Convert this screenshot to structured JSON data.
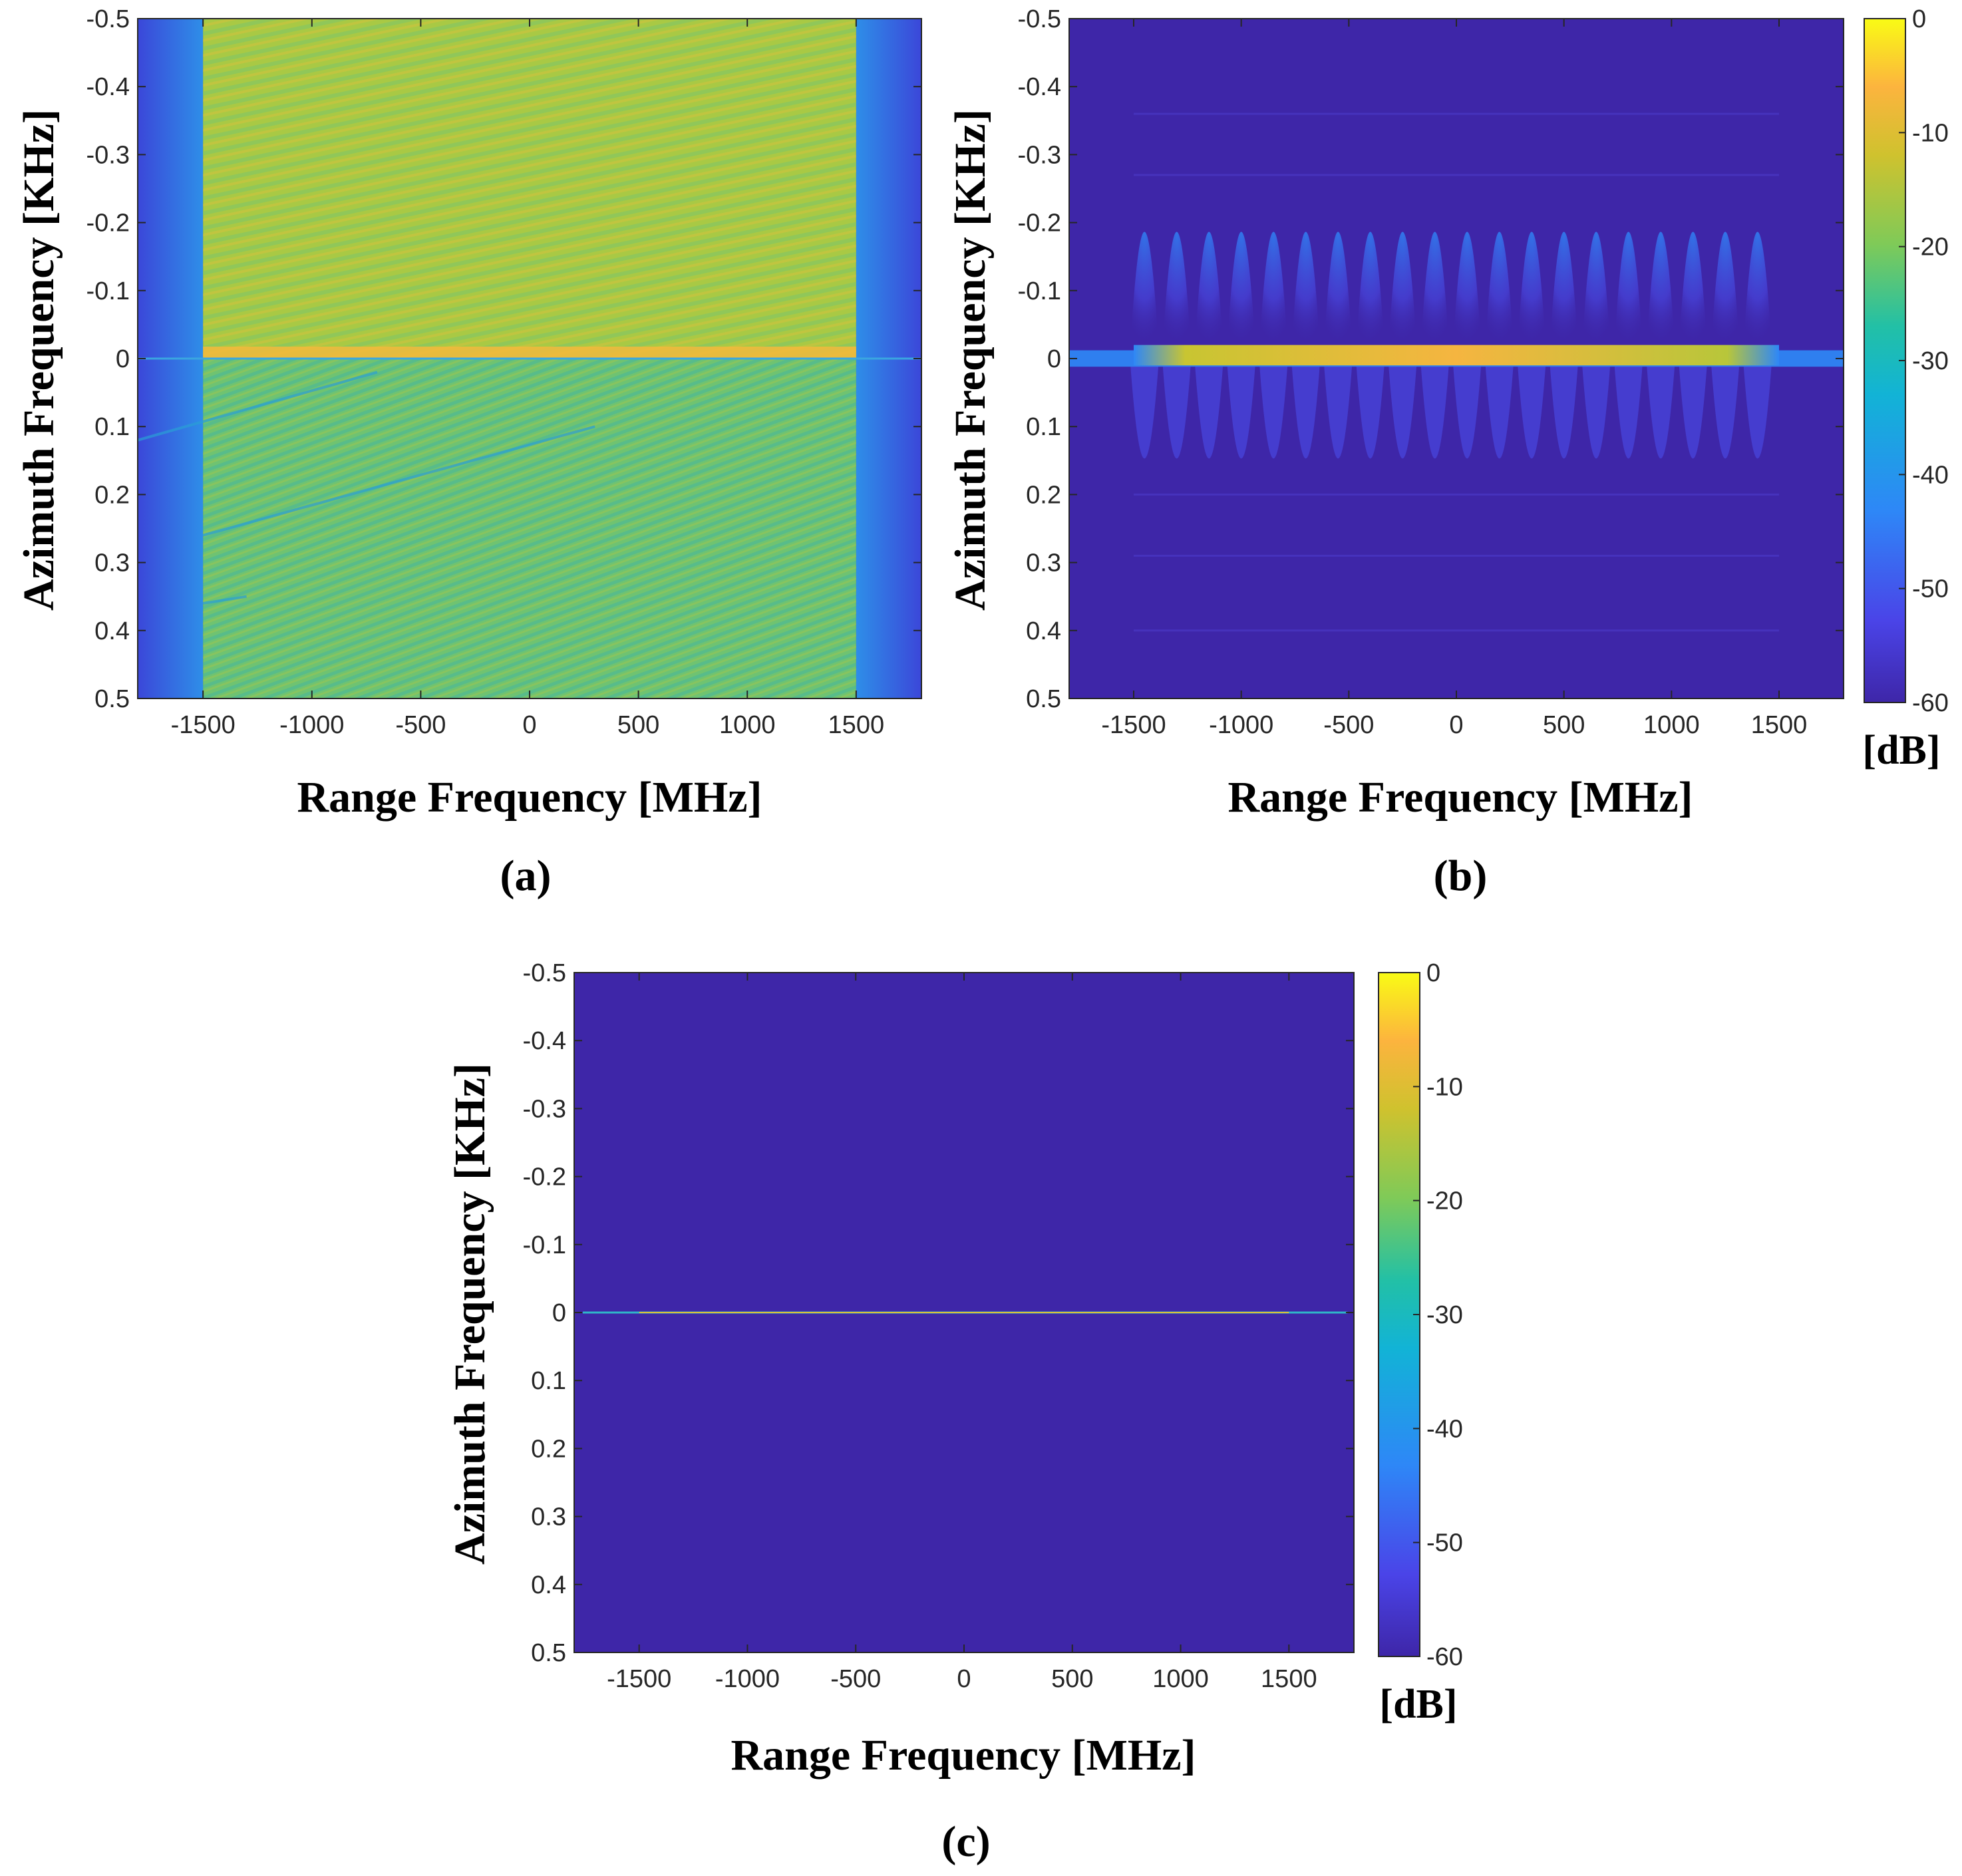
{
  "chart_data": [
    {
      "type": "heatmap",
      "panel_label": "(a)",
      "xlabel": "Range Frequency [MHz]",
      "ylabel": "Azimuth Frequency [KHz]",
      "xlim": [
        -1800,
        1800
      ],
      "ylim": [
        -0.5,
        0.5
      ],
      "y_reversed": true,
      "x_ticks": [
        -1500,
        -1000,
        -500,
        0,
        500,
        1000,
        1500
      ],
      "y_ticks": [
        -0.5,
        -0.4,
        -0.3,
        -0.2,
        -0.1,
        0,
        0.1,
        0.2,
        0.3,
        0.4,
        0.5
      ],
      "x_tick_labels": [
        "-1500",
        "-1000",
        "-500",
        "0",
        "500",
        "1000",
        "1500"
      ],
      "y_tick_labels": [
        "-0.5",
        "-0.4",
        "-0.3",
        "-0.2",
        "-0.1",
        "0",
        "0.1",
        "0.2",
        "0.3",
        "0.4",
        "0.5"
      ],
      "signal_band_mhz": [
        -1500,
        1500
      ],
      "description_levels_db": {
        "in_band_negative_azimuth": -12,
        "in_band_positive_azimuth": -20,
        "out_of_band": -45
      },
      "colorbar": null
    },
    {
      "type": "heatmap",
      "panel_label": "(b)",
      "xlabel": "Range Frequency [MHz]",
      "ylabel": "Azimuth Frequency [KHz]",
      "xlim": [
        -1800,
        1800
      ],
      "ylim": [
        -0.5,
        0.5
      ],
      "y_reversed": true,
      "x_ticks": [
        -1500,
        -1000,
        -500,
        0,
        500,
        1000,
        1500
      ],
      "y_ticks": [
        -0.5,
        -0.4,
        -0.3,
        -0.2,
        -0.1,
        0,
        0.1,
        0.2,
        0.3,
        0.4,
        0.5
      ],
      "x_tick_labels": [
        "-1500",
        "-1000",
        "-500",
        "0",
        "500",
        "1000",
        "1500"
      ],
      "y_tick_labels": [
        "-0.5",
        "-0.4",
        "-0.3",
        "-0.2",
        "-0.1",
        "0",
        "0.1",
        "0.2",
        "0.3",
        "0.4",
        "0.5"
      ],
      "strong_band_azimuth_khz": [
        -0.02,
        0.01
      ],
      "lobe_centers_mhz": [
        -1450,
        -1300,
        -1150,
        -1000,
        -850,
        -700,
        -550,
        -400,
        -250,
        -100,
        50,
        200,
        350,
        500,
        650,
        800,
        950,
        1100,
        1250,
        1400
      ],
      "colorbar": {
        "ticks": [
          0,
          -10,
          -20,
          -30,
          -40,
          -50,
          -60
        ],
        "tick_labels": [
          "0",
          "-10",
          "-20",
          "-30",
          "-40",
          "-50",
          "-60"
        ],
        "range": [
          -60,
          0
        ],
        "unit": "[dB]"
      }
    },
    {
      "type": "heatmap",
      "panel_label": "(c)",
      "xlabel": "Range Frequency [MHz]",
      "ylabel": "Azimuth Frequency [KHz]",
      "xlim": [
        -1800,
        1800
      ],
      "ylim": [
        -0.5,
        0.5
      ],
      "y_reversed": true,
      "x_ticks": [
        -1500,
        -1000,
        -500,
        0,
        500,
        1000,
        1500
      ],
      "y_ticks": [
        -0.5,
        -0.4,
        -0.3,
        -0.2,
        -0.1,
        0,
        0.1,
        0.2,
        0.3,
        0.4,
        0.5
      ],
      "x_tick_labels": [
        "-1500",
        "-1000",
        "-500",
        "0",
        "500",
        "1000",
        "1500"
      ],
      "y_tick_labels": [
        "-0.5",
        "-0.4",
        "-0.3",
        "-0.2",
        "-0.1",
        "0",
        "0.1",
        "0.2",
        "0.3",
        "0.4",
        "0.5"
      ],
      "focused_line_azimuth_khz": 0,
      "focused_line_range_mhz": [
        -1760,
        1770
      ],
      "colorbar": {
        "ticks": [
          0,
          -10,
          -20,
          -30,
          -40,
          -50,
          -60
        ],
        "tick_labels": [
          "0",
          "-10",
          "-20",
          "-30",
          "-40",
          "-50",
          "-60"
        ],
        "range": [
          -60,
          0
        ],
        "unit": "[dB]"
      }
    }
  ],
  "colors": {
    "parula_low": "#3e26a8",
    "parula_stops": [
      "#3e26a8",
      "#4a44e8",
      "#2e87f7",
      "#12b3d6",
      "#22c0a6",
      "#7fca58",
      "#cfc22e",
      "#fcb43e",
      "#f9fb15"
    ],
    "axis": "#262626"
  }
}
